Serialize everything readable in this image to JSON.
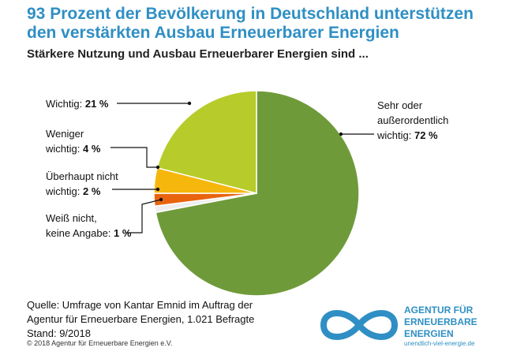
{
  "title_line1": "93 Prozent der Bevölkerung in Deutschland unterstützen",
  "title_line2": "den verstärkten Ausbau Erneuerbarer Energien",
  "subtitle": "Stärkere Nutzung und Ausbau Erneuerbarer Energien sind ...",
  "chart_data": {
    "type": "pie",
    "title": "Stärkere Nutzung und Ausbau Erneuerbarer Energien sind ...",
    "slices": [
      {
        "name": "Sehr oder außerordentlich wichtig",
        "value": 72,
        "color": "#6f9a3a"
      },
      {
        "name": "Weiß nicht, keine Angabe",
        "value": 1,
        "color": "#eeeeee"
      },
      {
        "name": "Überhaupt nicht wichtig",
        "value": 2,
        "color": "#e8640f"
      },
      {
        "name": "Weniger wichtig",
        "value": 4,
        "color": "#f6b70c"
      },
      {
        "name": "Wichtig",
        "value": 21,
        "color": "#b7cc2a"
      }
    ]
  },
  "labels": {
    "sehr_l1": "Sehr oder",
    "sehr_l2": "außerordentlich",
    "sehr_l3": "wichtig:",
    "sehr_val": "72 %",
    "wichtig": "Wichtig:",
    "wichtig_val": "21 %",
    "weniger_l1": "Weniger",
    "weniger_l2": "wichtig:",
    "weniger_val": "4 %",
    "ueberhaupt_l1": "Überhaupt nicht",
    "ueberhaupt_l2": "wichtig:",
    "ueberhaupt_val": "2 %",
    "weiss_l1": "Weiß nicht,",
    "weiss_l2": "keine Angabe:",
    "weiss_val": "1 %"
  },
  "source": {
    "line1": "Quelle: Umfrage von Kantar Emnid im Auftrag der",
    "line2": "Agentur für Erneuerbare Energien, 1.021 Befragte",
    "line3": "Stand: 9/2018"
  },
  "copyright": "© 2018 Agentur für Erneuerbare Energien e.V.",
  "logo": {
    "line1": "AGENTUR FÜR",
    "line2": "ERNEUERBARE",
    "line3": "ENERGIEN",
    "url": "unendlich-viel-energie.de",
    "color": "#2f8fc4"
  }
}
